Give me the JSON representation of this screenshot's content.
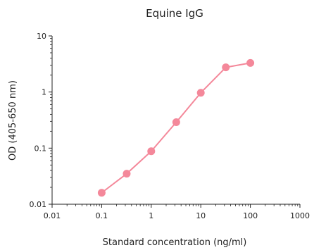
{
  "chart_data": {
    "type": "line",
    "title": "Equine IgG",
    "xlabel": "Standard concentration (ng/ml)",
    "ylabel": "OD (405-650 nm)",
    "xscale": "log",
    "yscale": "log",
    "xlim": [
      0.01,
      1000
    ],
    "ylim": [
      0.01,
      10
    ],
    "x_ticks": [
      0.01,
      0.1,
      1,
      10,
      100,
      1000
    ],
    "x_tick_labels": [
      "0.01",
      "0.1",
      "1",
      "10",
      "100",
      "1000"
    ],
    "y_ticks": [
      0.01,
      0.1,
      1,
      10
    ],
    "y_tick_labels": [
      "0.01",
      "0.1",
      "1",
      "10"
    ],
    "grid": false,
    "legend": "none",
    "series": [
      {
        "color": "#f4889a",
        "x": [
          0.1,
          0.32,
          1,
          3.2,
          10,
          32,
          100
        ],
        "y": [
          0.016,
          0.035,
          0.088,
          0.29,
          0.97,
          2.75,
          3.3
        ]
      }
    ]
  }
}
